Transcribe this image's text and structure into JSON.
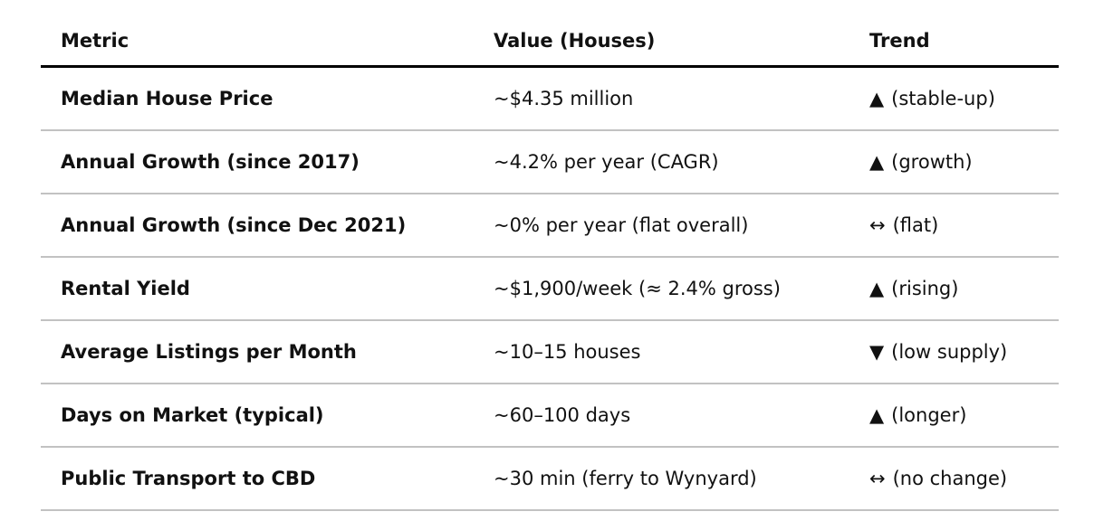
{
  "colors": {
    "background": "#ffffff",
    "text": "#111111",
    "header_rule": "#000000",
    "row_rule": "#c2c2c2"
  },
  "table": {
    "columns": [
      "Metric",
      "Value (Houses)",
      "Trend"
    ],
    "rows": [
      {
        "metric": "Median House Price",
        "value": "~$4.35 million",
        "trend_icon": "▲",
        "trend_label": "(stable-up)"
      },
      {
        "metric": "Annual Growth (since 2017)",
        "value": "~4.2% per year (CAGR)",
        "trend_icon": "▲",
        "trend_label": "(growth)"
      },
      {
        "metric": "Annual Growth (since Dec 2021)",
        "value": "~0% per year (flat overall)",
        "trend_icon": "↔",
        "trend_label": "(flat)"
      },
      {
        "metric": "Rental Yield",
        "value": "~$1,900/week (≈ 2.4% gross)",
        "trend_icon": "▲",
        "trend_label": "(rising)"
      },
      {
        "metric": "Average Listings per Month",
        "value": "~10–15 houses",
        "trend_icon": "▼",
        "trend_label": "(low supply)"
      },
      {
        "metric": "Days on Market (typical)",
        "value": "~60–100 days",
        "trend_icon": "▲",
        "trend_label": "(longer)"
      },
      {
        "metric": "Public Transport to CBD",
        "value": "~30 min (ferry to Wynyard)",
        "trend_icon": "↔",
        "trend_label": "(no change)"
      }
    ]
  },
  "chart_data": {
    "type": "table",
    "columns": [
      "Metric",
      "Value (Houses)",
      "Trend"
    ],
    "rows": [
      [
        "Median House Price",
        "~$4.35 million",
        "▲ (stable-up)"
      ],
      [
        "Annual Growth (since 2017)",
        "~4.2% per year (CAGR)",
        "▲ (growth)"
      ],
      [
        "Annual Growth (since Dec 2021)",
        "~0% per year (flat overall)",
        "↔ (flat)"
      ],
      [
        "Rental Yield",
        "~$1,900/week (≈ 2.4% gross)",
        "▲ (rising)"
      ],
      [
        "Average Listings per Month",
        "~10–15 houses",
        "▼ (low supply)"
      ],
      [
        "Days on Market (typical)",
        "~60–100 days",
        "▲ (longer)"
      ],
      [
        "Public Transport to CBD",
        "~30 min (ferry to Wynyard)",
        "↔ (no change)"
      ]
    ]
  }
}
